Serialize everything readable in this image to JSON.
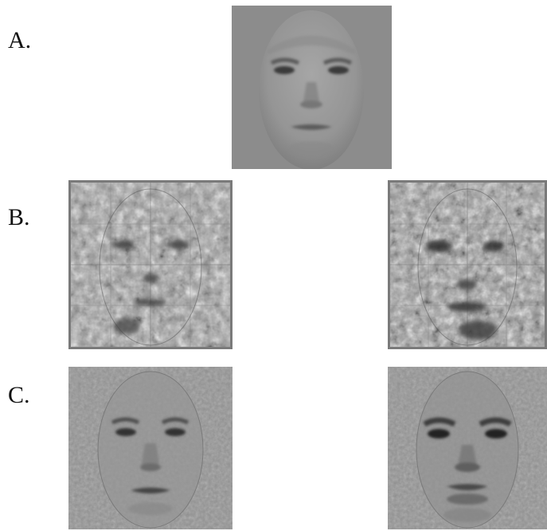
{
  "figure": {
    "rows": [
      {
        "label": "A."
      },
      {
        "label": "B."
      },
      {
        "label": "C."
      }
    ]
  },
  "panels": {
    "a": {
      "icon": "base-face-image"
    },
    "b1": {
      "icon": "noise-face-image"
    },
    "b2": {
      "icon": "noise-face-image"
    },
    "c1": {
      "icon": "classification-image"
    },
    "c2": {
      "icon": "classification-image"
    }
  },
  "colors": {
    "background": "#ffffff",
    "gray_bg": "#8c8c8c",
    "face_tone": "#999999",
    "noise_dark": "#4a4a4a",
    "noise_light": "#c9c9c9"
  }
}
